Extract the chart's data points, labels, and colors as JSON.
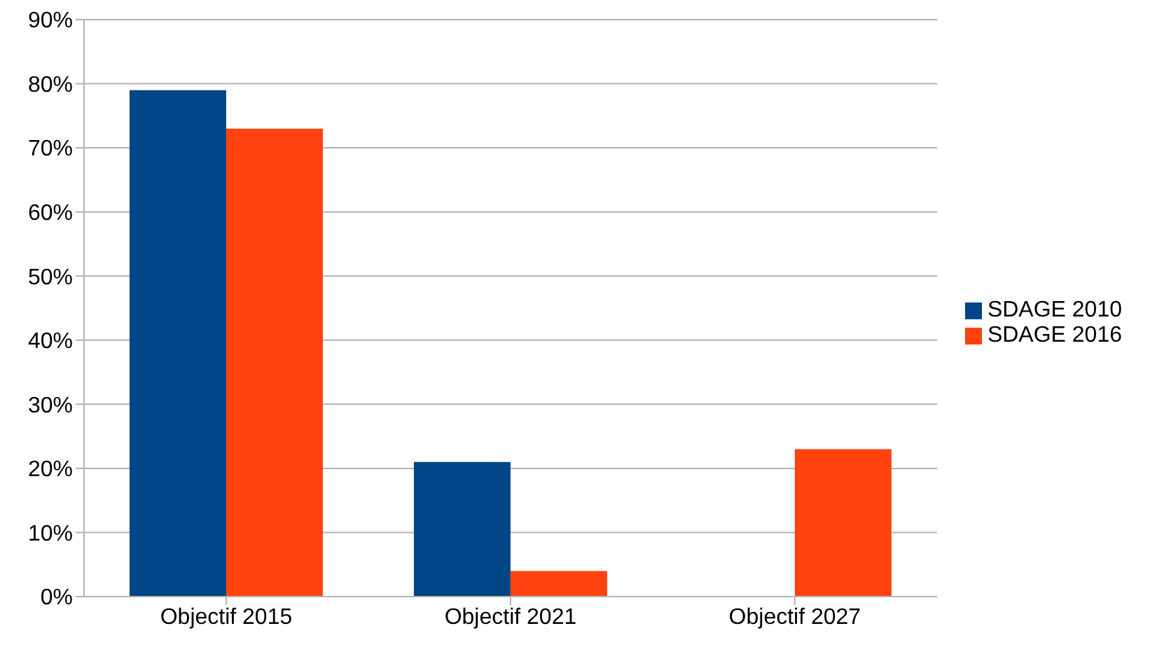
{
  "chart_data": {
    "type": "bar",
    "categories": [
      "Objectif 2015",
      "Objectif 2021",
      "Objectif 2027"
    ],
    "series": [
      {
        "name": "SDAGE 2010",
        "color": "#004586",
        "values": [
          79,
          21,
          0
        ]
      },
      {
        "name": "SDAGE 2016",
        "color": "#ff420e",
        "values": [
          73,
          4,
          23
        ]
      }
    ],
    "ylim": [
      0,
      90
    ],
    "yticks": [
      {
        "value": 0,
        "label": "0%"
      },
      {
        "value": 10,
        "label": "10%"
      },
      {
        "value": 20,
        "label": "20%"
      },
      {
        "value": 30,
        "label": "30%"
      },
      {
        "value": 40,
        "label": "40%"
      },
      {
        "value": 50,
        "label": "50%"
      },
      {
        "value": 60,
        "label": "60%"
      },
      {
        "value": 70,
        "label": "70%"
      },
      {
        "value": 80,
        "label": "80%"
      },
      {
        "value": 90,
        "label": "90%"
      }
    ],
    "grid": "y",
    "legend": "right"
  }
}
